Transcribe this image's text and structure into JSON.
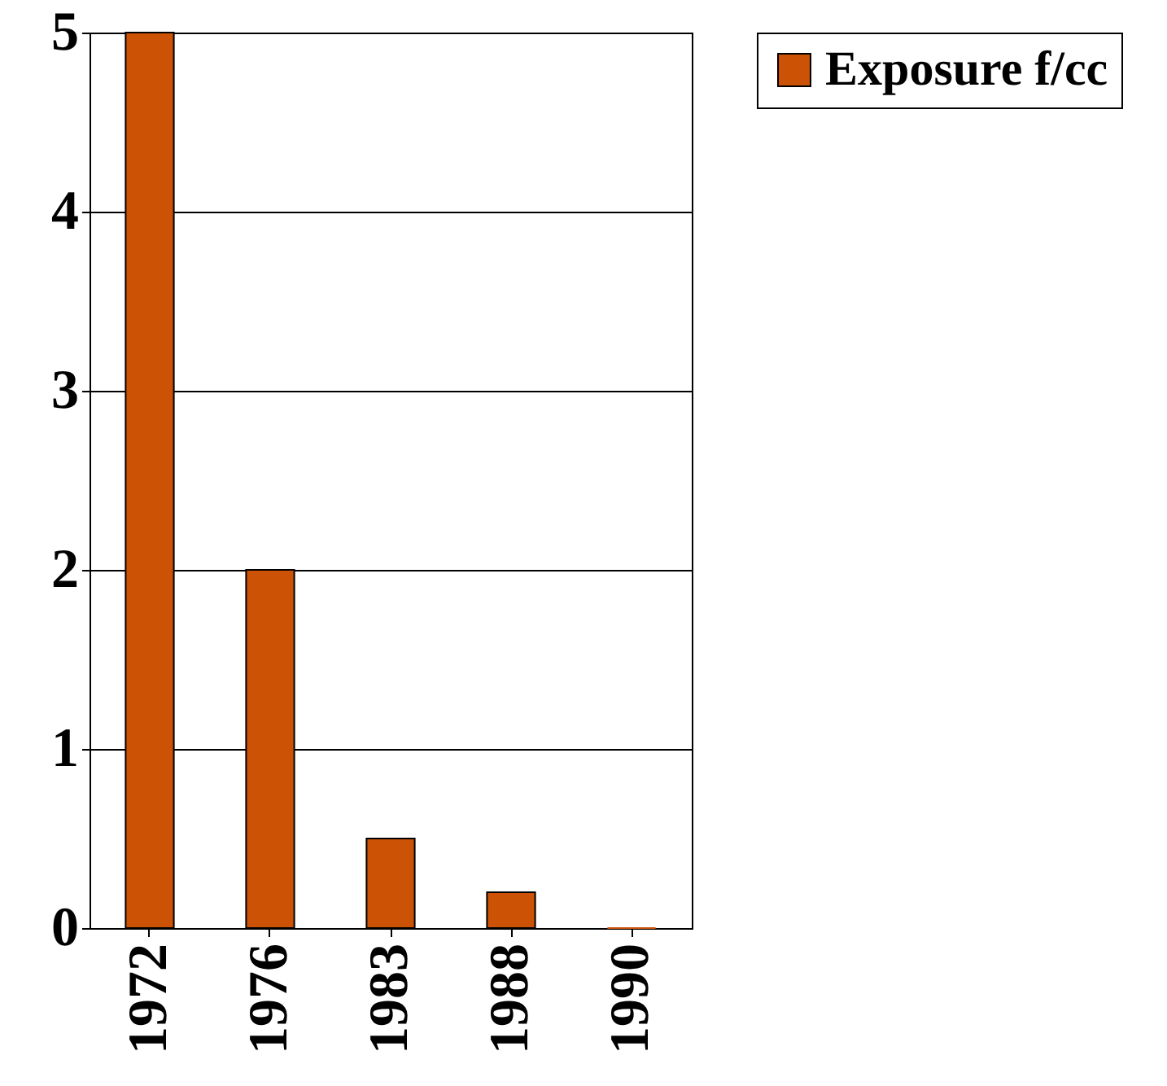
{
  "chart_data": {
    "type": "bar",
    "categories": [
      "1972",
      "1976",
      "1983",
      "1988",
      "1990"
    ],
    "series": [
      {
        "name": "Exposure f/cc",
        "color": "#cc5206",
        "values": [
          5,
          2,
          0.5,
          0.2,
          0
        ]
      }
    ],
    "ylim": [
      0,
      5
    ],
    "yticks": [
      0,
      1,
      2,
      3,
      4,
      5
    ],
    "grid": "y",
    "legend": "right"
  }
}
